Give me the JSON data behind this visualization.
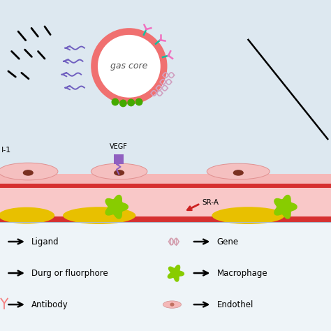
{
  "bg_color": "#dde8f0",
  "vessel_red": "#d63030",
  "vessel_pink_top": "#f5b8b8",
  "vessel_pink_inner": "#f9cccc",
  "vessel_yellow": "#e8c000",
  "bubble_edge": "#f07070",
  "bubble_fill": "#ffffff",
  "bubble_text": "gas core",
  "arrow_purple": "#7060c0",
  "arrow_black": "#111111",
  "green_macro": "#88cc00",
  "label_vegf": "VEGF",
  "label_sra": "SR-A",
  "label_mcp": "I-1",
  "legend_left": [
    "Ligand",
    "Durg or fluorphore",
    "Antibody"
  ],
  "legend_right": [
    "Gene",
    "Macrophage",
    "Endothel"
  ],
  "gene_color": "#d4a0b0",
  "antibody_color": "#f48080",
  "endo_color": "#f5b8b8",
  "endo_nuc": "#c07060"
}
